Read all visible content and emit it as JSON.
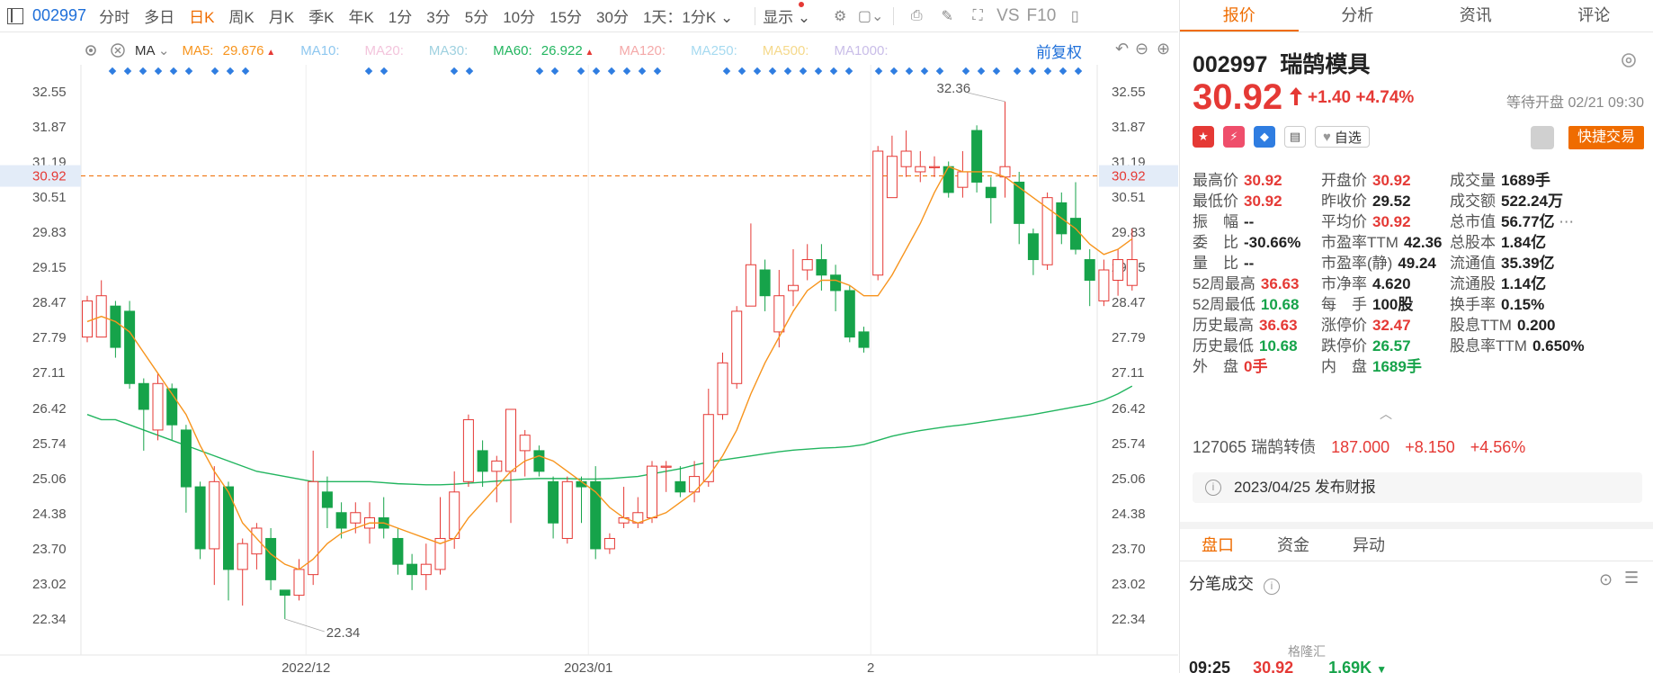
{
  "toolbar": {
    "code": "002997",
    "tabs": [
      "分时",
      "多日",
      "日K",
      "周K",
      "月K",
      "季K",
      "年K",
      "1分",
      "3分",
      "5分",
      "10分",
      "15分",
      "30分"
    ],
    "active_tab": "日K",
    "period_select": "1天：1分K",
    "display_select": "显示",
    "vs_label": "VS",
    "f10_label": "F10"
  },
  "indicators": {
    "ma_label": "MA",
    "items": [
      {
        "label": "MA5:",
        "value": "29.676",
        "color": "#f7941d",
        "arrow": "▲"
      },
      {
        "label": "MA10:",
        "value": "",
        "color": "#8ec7ef"
      },
      {
        "label": "MA20:",
        "value": "",
        "color": "#f3c4dc"
      },
      {
        "label": "MA30:",
        "value": "",
        "color": "#9fd1e0"
      },
      {
        "label": "MA60:",
        "value": "26.922",
        "color": "#22b55f",
        "arrow": "▲"
      },
      {
        "label": "MA120:",
        "value": "",
        "color": "#f4a9a9"
      },
      {
        "label": "MA250:",
        "value": "",
        "color": "#a6daf0"
      },
      {
        "label": "MA500:",
        "value": "",
        "color": "#f5d98b"
      },
      {
        "label": "MA1000:",
        "value": "",
        "color": "#c9bde8"
      }
    ],
    "fq_label": "前复权"
  },
  "colors": {
    "up": "#e53935",
    "down": "#16a34a",
    "ma5": "#f7941d",
    "ma60": "#22b55f",
    "accent": "#ef6c00",
    "link": "#1e6fd9"
  },
  "chart_data": {
    "type": "candlestick",
    "y_ticks": [
      "32.55",
      "31.87",
      "31.19",
      "30.51",
      "29.83",
      "29.15",
      "28.47",
      "27.79",
      "27.11",
      "26.42",
      "25.74",
      "25.06",
      "24.38",
      "23.70",
      "23.02",
      "22.34"
    ],
    "y_range": [
      22.34,
      32.55
    ],
    "x_ticks": [
      {
        "label": "2022/12",
        "index": 16
      },
      {
        "label": "2023/01",
        "index": 36
      },
      {
        "label": "2",
        "index": 56
      }
    ],
    "current_price_line": "30.92",
    "annotations": {
      "high": "32.36",
      "low": "22.34"
    },
    "candles": [
      {
        "o": 27.8,
        "c": 28.5,
        "h": 28.6,
        "l": 27.7
      },
      {
        "o": 27.8,
        "c": 28.6,
        "h": 28.9,
        "l": 27.8
      },
      {
        "o": 28.4,
        "c": 27.6,
        "h": 28.5,
        "l": 27.4
      },
      {
        "o": 28.3,
        "c": 26.9,
        "h": 28.5,
        "l": 26.8
      },
      {
        "o": 26.9,
        "c": 26.4,
        "h": 27.0,
        "l": 25.6
      },
      {
        "o": 26.0,
        "c": 26.9,
        "h": 27.1,
        "l": 25.8
      },
      {
        "o": 26.8,
        "c": 26.1,
        "h": 26.9,
        "l": 25.8
      },
      {
        "o": 26.0,
        "c": 24.9,
        "h": 26.1,
        "l": 24.4
      },
      {
        "o": 24.9,
        "c": 23.7,
        "h": 25.0,
        "l": 23.5
      },
      {
        "o": 23.7,
        "c": 25.0,
        "h": 25.3,
        "l": 23.0
      },
      {
        "o": 24.9,
        "c": 23.3,
        "h": 25.0,
        "l": 22.7
      },
      {
        "o": 23.3,
        "c": 23.8,
        "h": 23.9,
        "l": 22.6
      },
      {
        "o": 23.6,
        "c": 24.1,
        "h": 24.2,
        "l": 23.3
      },
      {
        "o": 23.9,
        "c": 23.1,
        "h": 24.1,
        "l": 22.9
      },
      {
        "o": 22.9,
        "c": 22.8,
        "h": 22.9,
        "l": 22.34
      },
      {
        "o": 22.8,
        "c": 23.3,
        "h": 23.5,
        "l": 22.7
      },
      {
        "o": 23.2,
        "c": 25.0,
        "h": 25.6,
        "l": 23.0
      },
      {
        "o": 24.8,
        "c": 24.5,
        "h": 25.1,
        "l": 24.1
      },
      {
        "o": 24.4,
        "c": 24.1,
        "h": 24.6,
        "l": 23.9
      },
      {
        "o": 24.2,
        "c": 24.4,
        "h": 24.6,
        "l": 24.0
      },
      {
        "o": 24.1,
        "c": 24.3,
        "h": 24.6,
        "l": 23.8
      },
      {
        "o": 24.3,
        "c": 24.1,
        "h": 24.7,
        "l": 23.9
      },
      {
        "o": 23.9,
        "c": 23.4,
        "h": 24.1,
        "l": 23.2
      },
      {
        "o": 23.4,
        "c": 23.2,
        "h": 23.6,
        "l": 22.9
      },
      {
        "o": 23.2,
        "c": 23.4,
        "h": 23.8,
        "l": 22.9
      },
      {
        "o": 23.3,
        "c": 23.9,
        "h": 24.7,
        "l": 23.2
      },
      {
        "o": 23.9,
        "c": 24.8,
        "h": 25.2,
        "l": 23.7
      },
      {
        "o": 25.0,
        "c": 26.2,
        "h": 26.3,
        "l": 24.9
      },
      {
        "o": 25.6,
        "c": 25.2,
        "h": 25.8,
        "l": 24.9
      },
      {
        "o": 25.2,
        "c": 25.4,
        "h": 25.5,
        "l": 24.6
      },
      {
        "o": 25.2,
        "c": 26.4,
        "h": 26.4,
        "l": 24.2
      },
      {
        "o": 25.6,
        "c": 25.9,
        "h": 26.0,
        "l": 25.1
      },
      {
        "o": 25.6,
        "c": 25.2,
        "h": 25.7,
        "l": 25.1
      },
      {
        "o": 25.0,
        "c": 24.2,
        "h": 25.1,
        "l": 23.9
      },
      {
        "o": 23.9,
        "c": 25.0,
        "h": 25.1,
        "l": 23.8
      },
      {
        "o": 25.0,
        "c": 24.9,
        "h": 25.1,
        "l": 24.2
      },
      {
        "o": 25.0,
        "c": 23.7,
        "h": 25.3,
        "l": 23.5
      },
      {
        "o": 23.7,
        "c": 23.9,
        "h": 24.0,
        "l": 23.6
      },
      {
        "o": 24.2,
        "c": 24.3,
        "h": 24.9,
        "l": 24.1
      },
      {
        "o": 24.2,
        "c": 24.4,
        "h": 24.7,
        "l": 24.1
      },
      {
        "o": 24.3,
        "c": 25.3,
        "h": 25.4,
        "l": 24.2
      },
      {
        "o": 25.3,
        "c": 25.3,
        "h": 25.4,
        "l": 24.8
      },
      {
        "o": 25.0,
        "c": 24.8,
        "h": 25.3,
        "l": 24.7
      },
      {
        "o": 24.8,
        "c": 25.1,
        "h": 25.4,
        "l": 24.6
      },
      {
        "o": 25.0,
        "c": 26.3,
        "h": 26.8,
        "l": 24.9
      },
      {
        "o": 26.3,
        "c": 27.3,
        "h": 27.5,
        "l": 26.2
      },
      {
        "o": 26.9,
        "c": 28.3,
        "h": 28.4,
        "l": 26.8
      },
      {
        "o": 28.4,
        "c": 29.2,
        "h": 30.0,
        "l": 28.4
      },
      {
        "o": 29.1,
        "c": 28.6,
        "h": 29.3,
        "l": 28.3
      },
      {
        "o": 27.9,
        "c": 28.6,
        "h": 29.1,
        "l": 27.6
      },
      {
        "o": 28.7,
        "c": 28.8,
        "h": 29.5,
        "l": 28.4
      },
      {
        "o": 29.1,
        "c": 29.3,
        "h": 29.6,
        "l": 28.9
      },
      {
        "o": 29.3,
        "c": 29.0,
        "h": 29.6,
        "l": 28.7
      },
      {
        "o": 29.0,
        "c": 28.7,
        "h": 29.2,
        "l": 28.3
      },
      {
        "o": 28.7,
        "c": 27.8,
        "h": 28.8,
        "l": 27.7
      },
      {
        "o": 27.9,
        "c": 27.6,
        "h": 28.0,
        "l": 27.5
      },
      {
        "o": 29.0,
        "c": 31.4,
        "h": 31.5,
        "l": 28.9
      },
      {
        "o": 30.5,
        "c": 31.3,
        "h": 31.7,
        "l": 30.6
      },
      {
        "o": 31.1,
        "c": 31.4,
        "h": 31.8,
        "l": 30.9
      },
      {
        "o": 31.0,
        "c": 31.1,
        "h": 31.4,
        "l": 30.8
      },
      {
        "o": 31.1,
        "c": 31.1,
        "h": 31.3,
        "l": 30.9
      },
      {
        "o": 31.1,
        "c": 30.6,
        "h": 31.2,
        "l": 30.5
      },
      {
        "o": 30.7,
        "c": 31.0,
        "h": 31.4,
        "l": 30.5
      },
      {
        "o": 31.8,
        "c": 30.8,
        "h": 31.9,
        "l": 30.6
      },
      {
        "o": 30.7,
        "c": 30.5,
        "h": 30.9,
        "l": 30.0
      },
      {
        "o": 30.9,
        "c": 31.1,
        "h": 32.36,
        "l": 30.5
      },
      {
        "o": 30.8,
        "c": 30.0,
        "h": 31.0,
        "l": 29.6
      },
      {
        "o": 29.8,
        "c": 29.3,
        "h": 29.9,
        "l": 29.0
      },
      {
        "o": 29.2,
        "c": 30.5,
        "h": 30.6,
        "l": 29.1
      },
      {
        "o": 30.4,
        "c": 29.8,
        "h": 30.6,
        "l": 29.6
      },
      {
        "o": 30.1,
        "c": 29.5,
        "h": 30.8,
        "l": 29.4
      },
      {
        "o": 29.3,
        "c": 28.9,
        "h": 29.5,
        "l": 28.4
      },
      {
        "o": 28.5,
        "c": 29.1,
        "h": 29.3,
        "l": 28.4
      },
      {
        "o": 28.9,
        "c": 29.3,
        "h": 29.5,
        "l": 28.6
      },
      {
        "o": 28.8,
        "c": 29.3,
        "h": 29.9,
        "l": 28.7
      }
    ],
    "ma5": [
      28.1,
      28.2,
      28.1,
      27.9,
      27.5,
      27.1,
      26.7,
      26.3,
      25.7,
      25.2,
      24.8,
      24.2,
      23.9,
      23.6,
      23.4,
      23.3,
      23.5,
      23.8,
      24.0,
      24.1,
      24.2,
      24.2,
      24.1,
      24.0,
      23.9,
      23.8,
      23.9,
      24.3,
      24.6,
      24.9,
      25.2,
      25.4,
      25.5,
      25.4,
      25.2,
      25.0,
      24.8,
      24.5,
      24.3,
      24.2,
      24.3,
      24.4,
      24.6,
      24.8,
      25.1,
      25.5,
      26.0,
      26.7,
      27.3,
      27.8,
      28.3,
      28.7,
      28.9,
      28.9,
      28.8,
      28.6,
      28.6,
      29.0,
      29.5,
      30.0,
      30.6,
      31.1,
      31.0,
      31.0,
      31.0,
      30.9,
      30.7,
      30.5,
      30.3,
      30.1,
      29.9,
      29.6,
      29.4,
      29.5,
      29.7
    ],
    "ma60": [
      26.3,
      26.2,
      26.2,
      26.1,
      26.0,
      25.9,
      25.8,
      25.7,
      25.6,
      25.5,
      25.4,
      25.3,
      25.2,
      25.15,
      25.1,
      25.05,
      25.0,
      25.0,
      25.0,
      25.0,
      25.0,
      24.98,
      24.96,
      24.95,
      24.94,
      24.94,
      24.95,
      24.97,
      24.99,
      25.01,
      25.03,
      25.05,
      25.06,
      25.06,
      25.06,
      25.05,
      25.05,
      25.06,
      25.08,
      25.1,
      25.15,
      25.2,
      25.25,
      25.32,
      25.38,
      25.42,
      25.46,
      25.5,
      25.54,
      25.58,
      25.61,
      25.63,
      25.65,
      25.66,
      25.68,
      25.72,
      25.8,
      25.88,
      25.94,
      25.99,
      26.03,
      26.07,
      26.1,
      26.14,
      26.18,
      26.22,
      26.26,
      26.3,
      26.35,
      26.4,
      26.45,
      26.5,
      26.58,
      26.7,
      26.85
    ]
  },
  "right": {
    "tabs": [
      "报价",
      "分析",
      "资讯",
      "评论"
    ],
    "active_tab": "报价",
    "stock_code": "002997",
    "stock_name": "瑞鹄模具",
    "price": "30.92",
    "change": "+1.40",
    "change_pct": "+4.74%",
    "wait_open": "等待开盘 02/21 09:30",
    "chips": [
      "沪",
      "㊥",
      "◈",
      "▤"
    ],
    "zixuan": "自选",
    "quick_trade": "快捷交易",
    "stats": [
      [
        {
          "k": "最高价",
          "v": "30.92",
          "c": "red"
        },
        {
          "k": "开盘价",
          "v": "30.92",
          "c": "red"
        },
        {
          "k": "成交量",
          "v": "1689手",
          "c": "dark"
        }
      ],
      [
        {
          "k": "最低价",
          "v": "30.92",
          "c": "red"
        },
        {
          "k": "昨收价",
          "v": "29.52",
          "c": "dark"
        },
        {
          "k": "成交额",
          "v": "522.24万",
          "c": "dark"
        }
      ],
      [
        {
          "k": "振　幅",
          "v": "--",
          "c": "dark"
        },
        {
          "k": "平均价",
          "v": "30.92",
          "c": "red"
        },
        {
          "k": "总市值",
          "v": "56.77亿",
          "c": "dark"
        }
      ],
      [
        {
          "k": "委　比",
          "v": "-30.66%",
          "c": "dark"
        },
        {
          "k": "市盈率TTM",
          "v": "42.36",
          "c": "dark"
        },
        {
          "k": "总股本",
          "v": "1.84亿",
          "c": "dark"
        }
      ],
      [
        {
          "k": "量　比",
          "v": "--",
          "c": "dark"
        },
        {
          "k": "市盈率(静)",
          "v": "49.24",
          "c": "dark"
        },
        {
          "k": "流通值",
          "v": "35.39亿",
          "c": "dark"
        }
      ],
      [
        {
          "k": "52周最高",
          "v": "36.63",
          "c": "red"
        },
        {
          "k": "市净率",
          "v": "4.620",
          "c": "dark"
        },
        {
          "k": "流通股",
          "v": "1.14亿",
          "c": "dark"
        }
      ],
      [
        {
          "k": "52周最低",
          "v": "10.68",
          "c": "green"
        },
        {
          "k": "每　手",
          "v": "100股",
          "c": "dark"
        },
        {
          "k": "换手率",
          "v": "0.15%",
          "c": "dark"
        }
      ],
      [
        {
          "k": "历史最高",
          "v": "36.63",
          "c": "red"
        },
        {
          "k": "涨停价",
          "v": "32.47",
          "c": "red"
        },
        {
          "k": "股息TTM",
          "v": "0.200",
          "c": "dark"
        }
      ],
      [
        {
          "k": "历史最低",
          "v": "10.68",
          "c": "green"
        },
        {
          "k": "跌停价",
          "v": "26.57",
          "c": "green"
        },
        {
          "k": "股息率TTM",
          "v": "0.650%",
          "c": "dark"
        }
      ],
      [
        {
          "k": "外　盘",
          "v": "0手",
          "c": "red"
        },
        {
          "k": "内　盘",
          "v": "1689手",
          "c": "green"
        },
        {
          "k": "",
          "v": "",
          "c": "dark"
        }
      ]
    ],
    "bond": {
      "name": "127065 瑞鹄转债",
      "price": "187.000",
      "chg": "+8.150",
      "pct": "+4.56%"
    },
    "notice": "2023/04/25 发布财报",
    "subtabs": [
      "盘口",
      "资金",
      "异动"
    ],
    "sub_active": "盘口",
    "fbcj": "分笔成交",
    "tick": {
      "time": "09:25",
      "price": "30.92",
      "vol": "1.69K"
    },
    "watermark": "格隆汇"
  }
}
